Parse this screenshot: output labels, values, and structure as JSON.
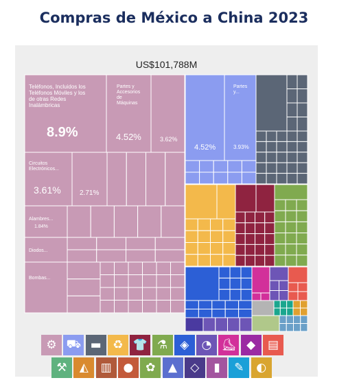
{
  "title": "Compras de México a China 2023",
  "chart_data": {
    "type": "treemap",
    "total_label": "US$101,788M",
    "labeled_cells": [
      {
        "name": "Teléfonos, Incluidos los Teléfonos Móviles y los de otras Redes Inalámbricas",
        "value_label": "8.9%",
        "value": 8.9,
        "color": "#c89ab5"
      },
      {
        "name": "Partes y Accesorios de Máquinas",
        "value_label": "4.52%",
        "value": 4.52,
        "color": "#c89ab5"
      },
      {
        "name": "",
        "value_label": "3.62%",
        "value": 3.62,
        "color": "#c89ab5"
      },
      {
        "name": "Circuitos Electrónicos...",
        "value_label": "3.61%",
        "value": 3.61,
        "color": "#c89ab5"
      },
      {
        "name": "",
        "value_label": "2.71%",
        "value": 2.71,
        "color": "#c89ab5"
      },
      {
        "name": "Alambres...",
        "value_label": "1.84%",
        "value": 1.84,
        "color": "#c89ab5"
      },
      {
        "name": "Diodos...",
        "value_label": "",
        "color": "#c89ab5"
      },
      {
        "name": "Bombas...",
        "value_label": "",
        "color": "#c89ab5"
      },
      {
        "name": "",
        "value_label": "4.52%",
        "value": 4.52,
        "color": "#8b9cf0"
      },
      {
        "name": "Partes y...",
        "value_label": "3.93%",
        "value": 3.93,
        "color": "#8b9cf0"
      }
    ],
    "sector_colors": [
      "#c89ab5",
      "#8b9cf0",
      "#5b6676",
      "#f3b94b",
      "#8f2340",
      "#80aa4f",
      "#2c5fd6",
      "#d2309a",
      "#6d55b6",
      "#e85a4f",
      "#b4b4b4",
      "#1aa68e",
      "#4a3aa0"
    ]
  },
  "icons": {
    "row1": [
      {
        "name": "gear-icon",
        "glyph": "⚙",
        "color": "#c89ab5"
      },
      {
        "name": "truck-icon",
        "glyph": "⛟",
        "color": "#8b9cf0"
      },
      {
        "name": "anvil-icon",
        "glyph": "▬",
        "color": "#5b6676"
      },
      {
        "name": "recycle-icon",
        "glyph": "♻",
        "color": "#f3b94b"
      },
      {
        "name": "shirt-icon",
        "glyph": "👕",
        "color": "#8f2340"
      },
      {
        "name": "flask-icon",
        "glyph": "⚗",
        "color": "#80aa4f"
      },
      {
        "name": "box-icon",
        "glyph": "◈",
        "color": "#2c5fd6"
      },
      {
        "name": "instrument-icon",
        "glyph": "◔",
        "color": "#6d55b6"
      },
      {
        "name": "shoe-icon",
        "glyph": "⛸",
        "color": "#d2309a"
      },
      {
        "name": "stone-icon",
        "glyph": "◆",
        "color": "#9b2aa3"
      },
      {
        "name": "paper-icon",
        "glyph": "▤",
        "color": "#e85a4f"
      }
    ],
    "row2": [
      {
        "name": "pickaxe-icon",
        "glyph": "⚒",
        "color": "#5fb27f"
      },
      {
        "name": "hide-icon",
        "glyph": "◭",
        "color": "#d98a2f"
      },
      {
        "name": "wood-icon",
        "glyph": "▥",
        "color": "#b05a3a"
      },
      {
        "name": "food-icon",
        "glyph": "●",
        "color": "#c35a3a"
      },
      {
        "name": "plant-icon",
        "glyph": "✿",
        "color": "#80aa4f"
      },
      {
        "name": "animal-icon",
        "glyph": "▲",
        "color": "#5b6fcf"
      },
      {
        "name": "diamond-icon",
        "glyph": "◇",
        "color": "#4a3a8a"
      },
      {
        "name": "vial-icon",
        "glyph": "▮",
        "color": "#a3559f"
      },
      {
        "name": "pen-icon",
        "glyph": "✎",
        "color": "#1aa0d8"
      },
      {
        "name": "palette-icon",
        "glyph": "◐",
        "color": "#d9a530"
      }
    ]
  }
}
